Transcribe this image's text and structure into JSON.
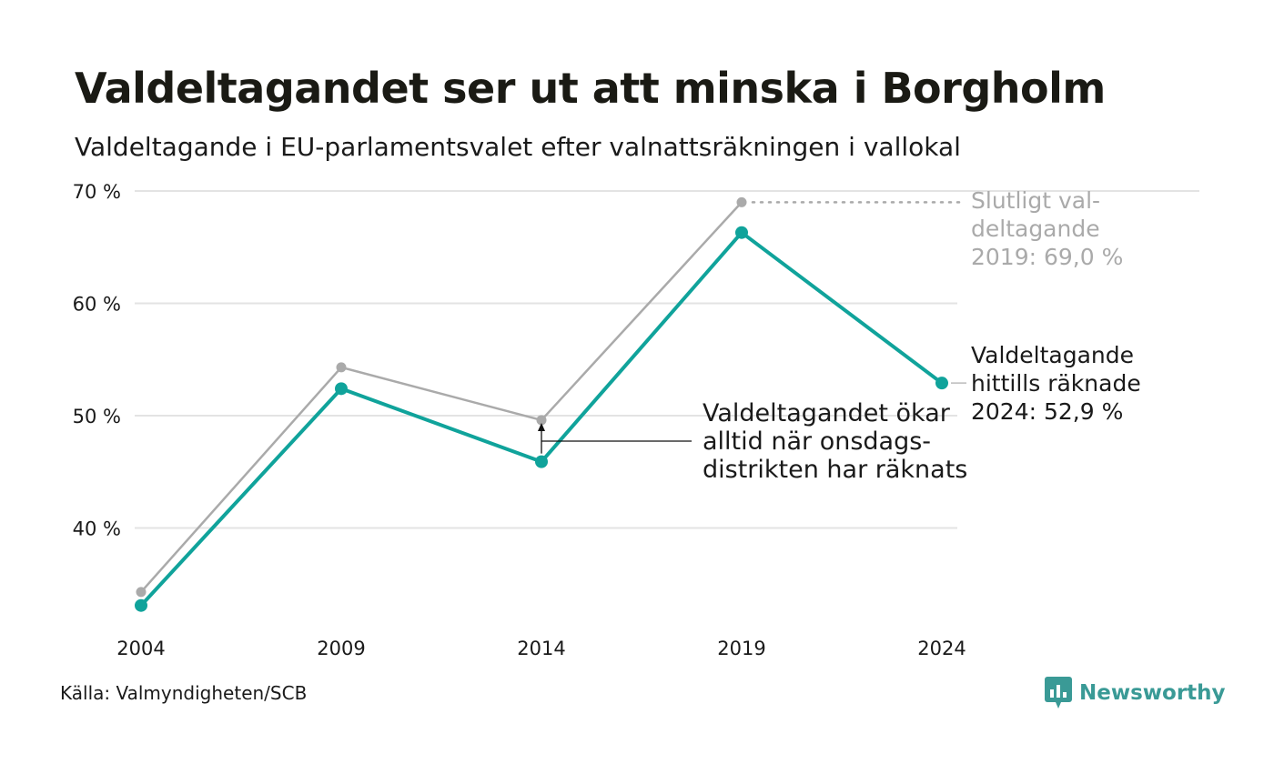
{
  "header": {
    "title": "Valdeltagandet ser ut att minska i Borgholm",
    "subtitle": "Valdeltagande i EU-parlamentsvalet efter valnattsräkningen i vallokal"
  },
  "footer": {
    "source": "Källa: Valmyndigheten/SCB",
    "brand": "Newsworthy"
  },
  "colors": {
    "preliminary": "#10a39b",
    "final": "#aaaaaa",
    "grid": "#e3e3e3",
    "text": "#1a1a1a",
    "brand": "#3a9a96"
  },
  "chart_data": {
    "type": "line",
    "x": [
      2004,
      2009,
      2014,
      2019,
      2024
    ],
    "categories": [
      "2004",
      "2009",
      "2014",
      "2019",
      "2024"
    ],
    "ylim": [
      30,
      70
    ],
    "yticks": [
      40,
      50,
      60,
      70
    ],
    "ytick_labels": [
      "40 %",
      "50 %",
      "60 %",
      "70 %"
    ],
    "grid": true,
    "series": [
      {
        "key": "final",
        "values": [
          34.3,
          54.3,
          49.6,
          69.0,
          null
        ],
        "color": "#aaaaaa"
      },
      {
        "key": "preliminary",
        "values": [
          33.1,
          52.4,
          45.9,
          66.3,
          52.9
        ],
        "color": "#10a39b"
      }
    ],
    "annotations": {
      "final_2019": [
        "Slutligt val-",
        "deltagande",
        "2019: 69,0 %"
      ],
      "prelim_2024": [
        "Valdeltagande",
        "hittills räknade",
        "2024: 52,9 %"
      ],
      "note": [
        "Valdeltagandet ökar",
        "alltid när onsdags-",
        "distrikten har räknats"
      ]
    }
  }
}
